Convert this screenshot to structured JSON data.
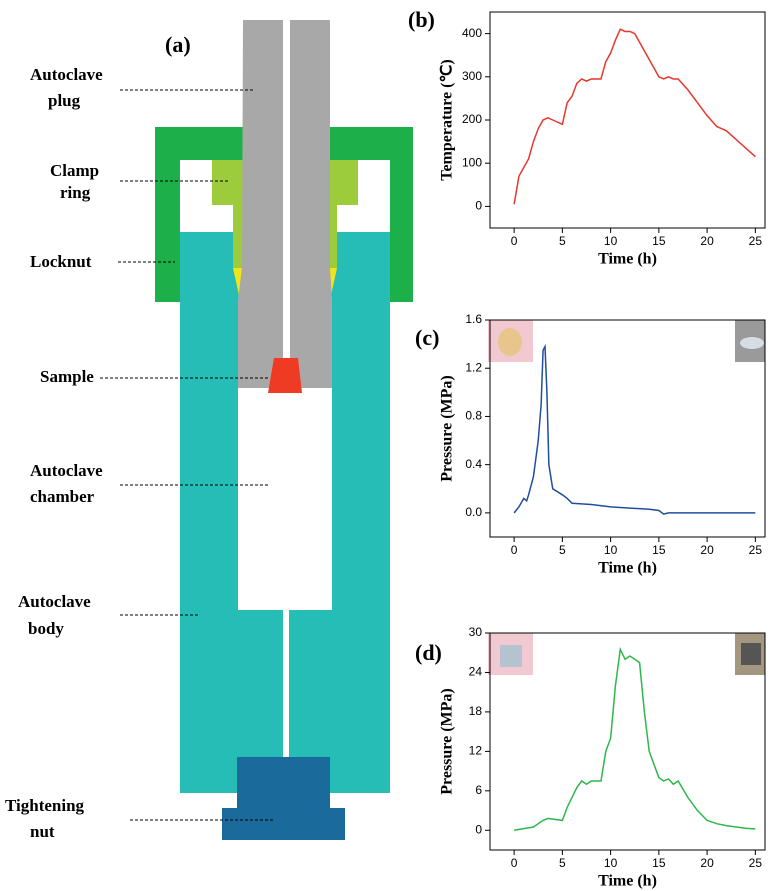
{
  "diagram": {
    "panel_label": "(a)",
    "labels": [
      {
        "lines": [
          "Autoclave",
          "plug"
        ]
      },
      {
        "lines": [
          "Clamp",
          "ring"
        ]
      },
      {
        "lines": [
          "Locknut"
        ]
      },
      {
        "lines": [
          "Sample"
        ]
      },
      {
        "lines": [
          "Autoclave",
          "chamber"
        ]
      },
      {
        "lines": [
          "Autoclave",
          "body"
        ]
      },
      {
        "lines": [
          "Tightening",
          "nut"
        ]
      }
    ]
  },
  "chart_data": [
    {
      "type": "line",
      "panel_label": "(b)",
      "x_label": "Time (h)",
      "y_label": "Temperature (℃)",
      "color": "#e8372e",
      "x": [
        0,
        0.5,
        1,
        1.5,
        2,
        2.5,
        3,
        3.5,
        4,
        5,
        5.5,
        6,
        6.5,
        7,
        7.5,
        8,
        9,
        9.5,
        10,
        10.5,
        11,
        11.5,
        12,
        12.5,
        13,
        14,
        15,
        15.5,
        16,
        16.5,
        17,
        18,
        19,
        20,
        21,
        22,
        23,
        24,
        25
      ],
      "values": [
        5,
        70,
        90,
        110,
        150,
        180,
        200,
        205,
        200,
        190,
        240,
        255,
        285,
        295,
        290,
        295,
        295,
        335,
        355,
        385,
        410,
        405,
        405,
        400,
        380,
        340,
        300,
        295,
        300,
        295,
        295,
        270,
        240,
        210,
        185,
        175,
        155,
        135,
        115
      ],
      "xlim": [
        -2.5,
        26
      ],
      "xticks": [
        0,
        5,
        10,
        15,
        20,
        25
      ],
      "ylim": [
        -50,
        450
      ],
      "yticks": [
        0,
        100,
        200,
        300,
        400
      ]
    },
    {
      "type": "line",
      "panel_label": "(c)",
      "x_label": "Time (h)",
      "y_label": "Pressure (MPa)",
      "color": "#1f4e9e",
      "x": [
        0,
        0.5,
        1,
        1.3,
        1.5,
        2,
        2.5,
        2.8,
        3,
        3.2,
        3.4,
        3.6,
        4,
        5,
        5.5,
        6,
        8,
        10,
        12,
        14,
        15,
        15.5,
        16,
        20,
        25
      ],
      "values": [
        0,
        0.05,
        0.12,
        0.1,
        0.15,
        0.3,
        0.6,
        0.9,
        1.35,
        1.38,
        1.0,
        0.4,
        0.2,
        0.15,
        0.12,
        0.08,
        0.07,
        0.05,
        0.04,
        0.03,
        0.02,
        -0.01,
        0,
        0,
        0
      ],
      "xlim": [
        -2.5,
        26
      ],
      "xticks": [
        0,
        5,
        10,
        15,
        20,
        25
      ],
      "ylim": [
        -0.2,
        1.6
      ],
      "yticks": [
        {
          "value": 0,
          "label": "0.0"
        },
        0.4,
        0.8,
        1.2,
        1.6
      ]
    },
    {
      "type": "line",
      "panel_label": "(d)",
      "x_label": "Time (h)",
      "y_label": "Pressure (MPa)",
      "color": "#2db84b",
      "x": [
        0,
        2,
        3,
        3.5,
        4,
        5,
        5.5,
        6,
        6.5,
        7,
        7.5,
        8,
        9,
        9.5,
        10,
        10.5,
        11,
        11.5,
        12,
        12.5,
        13,
        13.5,
        14,
        15,
        15.5,
        16,
        16.5,
        17,
        18,
        19,
        20,
        21,
        22,
        23,
        24,
        25
      ],
      "values": [
        0,
        0.5,
        1.5,
        1.8,
        1.7,
        1.5,
        3.5,
        5,
        6.5,
        7.5,
        7,
        7.5,
        7.5,
        12,
        14,
        22,
        27.5,
        26,
        26.5,
        26,
        25.5,
        18,
        12,
        8,
        7.5,
        7.8,
        7,
        7.5,
        5,
        3,
        1.5,
        1,
        0.7,
        0.5,
        0.3,
        0.2
      ],
      "xlim": [
        -2.5,
        26
      ],
      "xticks": [
        0,
        5,
        10,
        15,
        20,
        25
      ],
      "ylim": [
        -3,
        30
      ],
      "yticks": [
        0,
        6,
        12,
        18,
        24,
        30
      ]
    }
  ]
}
